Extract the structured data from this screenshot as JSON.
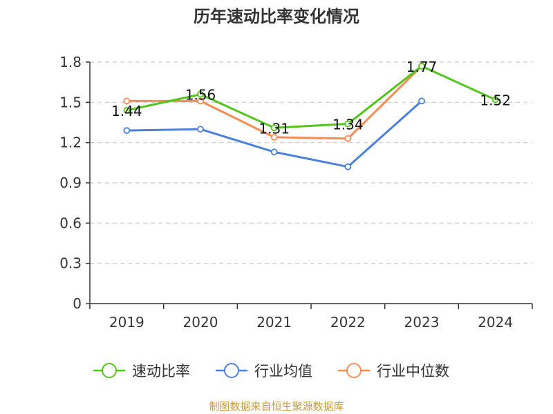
{
  "chart_data": {
    "type": "line",
    "title": "历年速动比率变化情况",
    "categories": [
      "2019",
      "2020",
      "2021",
      "2022",
      "2023",
      "2024"
    ],
    "ylim": [
      0,
      1.8
    ],
    "yticks": [
      "0",
      "0.3",
      "0.6",
      "0.9",
      "1.2",
      "1.5",
      "1.8"
    ],
    "grid": true,
    "legend_position": "bottom",
    "series": [
      {
        "name": "速动比率",
        "color": "#52c41a",
        "values": [
          1.44,
          1.56,
          1.31,
          1.34,
          1.77,
          1.52
        ],
        "labels": [
          "1.44",
          "1.56",
          "1.31",
          "1.34",
          "1.77",
          "1.52"
        ]
      },
      {
        "name": "行业均值",
        "color": "#4a7fdc",
        "values": [
          1.29,
          1.3,
          1.13,
          1.02,
          1.51,
          null
        ]
      },
      {
        "name": "行业中位数",
        "color": "#f48c54",
        "values": [
          1.51,
          1.51,
          1.24,
          1.23,
          1.77,
          null
        ]
      }
    ]
  },
  "source": "制图数据来自恒生聚源数据库"
}
